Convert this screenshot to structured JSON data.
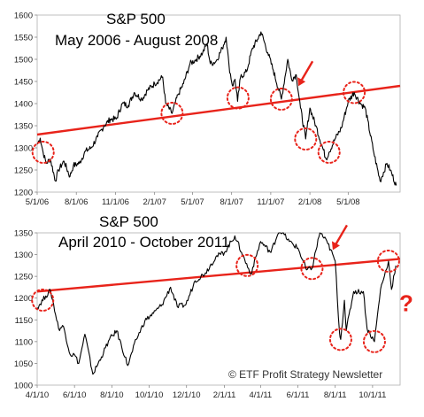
{
  "figure": {
    "watermark": "© ETF Profit Strategy Newsletter",
    "colors": {
      "price_line": "#000000",
      "trendline": "#e8231a",
      "circle": "#e8231a",
      "annotation": "#e8231a",
      "frame": "#b0b0b0",
      "grid": "#ffffff"
    }
  },
  "chart_data": [
    {
      "type": "line",
      "title": "S&P 500",
      "subtitle": "May 2006 - August 2008",
      "xlabel": "",
      "ylabel": "",
      "ylim": [
        1200,
        1600
      ],
      "y_ticks": [
        1200,
        1250,
        1300,
        1350,
        1400,
        1450,
        1500,
        1550,
        1600
      ],
      "x_tick_labels": [
        "5/1/06",
        "8/1/06",
        "11/1/06",
        "2/1/07",
        "5/1/07",
        "8/1/07",
        "11/1/07",
        "2/1/08",
        "5/1/08"
      ],
      "xlim": [
        "2006-05-01",
        "2008-08-31"
      ],
      "series": [
        {
          "values": [
            [
              "2006-05-01",
              1308
            ],
            [
              "2006-05-08",
              1322
            ],
            [
              "2006-05-15",
              1290
            ],
            [
              "2006-05-22",
              1265
            ],
            [
              "2006-06-01",
              1275
            ],
            [
              "2006-06-13",
              1225
            ],
            [
              "2006-06-20",
              1250
            ],
            [
              "2006-07-03",
              1270
            ],
            [
              "2006-07-17",
              1235
            ],
            [
              "2006-07-25",
              1260
            ],
            [
              "2006-08-08",
              1265
            ],
            [
              "2006-08-22",
              1292
            ],
            [
              "2006-09-05",
              1300
            ],
            [
              "2006-09-20",
              1325
            ],
            [
              "2006-10-05",
              1350
            ],
            [
              "2006-10-20",
              1365
            ],
            [
              "2006-11-03",
              1365
            ],
            [
              "2006-11-17",
              1400
            ],
            [
              "2006-12-01",
              1396
            ],
            [
              "2006-12-15",
              1425
            ],
            [
              "2007-01-02",
              1410
            ],
            [
              "2007-01-15",
              1430
            ],
            [
              "2007-02-01",
              1445
            ],
            [
              "2007-02-20",
              1460
            ],
            [
              "2007-02-27",
              1400
            ],
            [
              "2007-03-14",
              1378
            ],
            [
              "2007-03-28",
              1420
            ],
            [
              "2007-04-10",
              1445
            ],
            [
              "2007-04-25",
              1490
            ],
            [
              "2007-05-10",
              1500
            ],
            [
              "2007-05-25",
              1515
            ],
            [
              "2007-06-04",
              1535
            ],
            [
              "2007-06-12",
              1490
            ],
            [
              "2007-06-25",
              1495
            ],
            [
              "2007-07-10",
              1525
            ],
            [
              "2007-07-19",
              1550
            ],
            [
              "2007-07-26",
              1485
            ],
            [
              "2007-08-03",
              1440
            ],
            [
              "2007-08-09",
              1455
            ],
            [
              "2007-08-15",
              1405
            ],
            [
              "2007-08-22",
              1460
            ],
            [
              "2007-09-05",
              1472
            ],
            [
              "2007-09-19",
              1525
            ],
            [
              "2007-10-01",
              1545
            ],
            [
              "2007-10-09",
              1562
            ],
            [
              "2007-10-25",
              1515
            ],
            [
              "2007-11-07",
              1475
            ],
            [
              "2007-11-26",
              1410
            ],
            [
              "2007-12-11",
              1500
            ],
            [
              "2007-12-20",
              1455
            ],
            [
              "2007-12-31",
              1465
            ],
            [
              "2008-01-10",
              1390
            ],
            [
              "2008-01-22",
              1320
            ],
            [
              "2008-02-01",
              1390
            ],
            [
              "2008-02-15",
              1350
            ],
            [
              "2008-03-10",
              1275
            ],
            [
              "2008-03-17",
              1290
            ],
            [
              "2008-03-31",
              1320
            ],
            [
              "2008-04-15",
              1345
            ],
            [
              "2008-05-01",
              1405
            ],
            [
              "2008-05-15",
              1425
            ],
            [
              "2008-05-30",
              1400
            ],
            [
              "2008-06-10",
              1390
            ],
            [
              "2008-06-30",
              1290
            ],
            [
              "2008-07-15",
              1225
            ],
            [
              "2008-07-31",
              1265
            ],
            [
              "2008-08-08",
              1250
            ],
            [
              "2008-08-22",
              1215
            ]
          ]
        }
      ],
      "trendline": [
        [
          "2006-05-01",
          1330
        ],
        [
          "2008-08-31",
          1440
        ]
      ],
      "circles": [
        "2006-05-15",
        "2007-03-14",
        "2007-08-16",
        "2007-11-26",
        "2008-01-22",
        "2008-03-17",
        "2008-05-15"
      ],
      "annotations": [
        {
          "type": "arrow",
          "at": "2008-01-05"
        }
      ]
    },
    {
      "type": "line",
      "title": "S&P 500",
      "subtitle": "April 2010 - October 2011",
      "xlabel": "",
      "ylabel": "",
      "ylim": [
        1000,
        1350
      ],
      "y_ticks": [
        1000,
        1050,
        1100,
        1150,
        1200,
        1250,
        1300,
        1350
      ],
      "x_tick_labels": [
        "4/1/10",
        "6/1/10",
        "8/1/10",
        "10/1/10",
        "12/1/10",
        "2/1/11",
        "4/1/11",
        "6/1/11",
        "8/1/11",
        "10/1/11"
      ],
      "xlim": [
        "2010-04-01",
        "2011-11-15"
      ],
      "series": [
        {
          "values": [
            [
              "2010-04-01",
              1178
            ],
            [
              "2010-04-15",
              1205
            ],
            [
              "2010-04-23",
              1217
            ],
            [
              "2010-05-06",
              1130
            ],
            [
              "2010-05-14",
              1135
            ],
            [
              "2010-05-25",
              1070
            ],
            [
              "2010-06-01",
              1070
            ],
            [
              "2010-06-08",
              1050
            ],
            [
              "2010-06-18",
              1117
            ],
            [
              "2010-07-01",
              1025
            ],
            [
              "2010-07-15",
              1065
            ],
            [
              "2010-07-28",
              1105
            ],
            [
              "2010-08-09",
              1125
            ],
            [
              "2010-08-27",
              1045
            ],
            [
              "2010-09-10",
              1105
            ],
            [
              "2010-09-24",
              1148
            ],
            [
              "2010-10-08",
              1165
            ],
            [
              "2010-10-22",
              1185
            ],
            [
              "2010-11-05",
              1225
            ],
            [
              "2010-11-16",
              1180
            ],
            [
              "2010-11-30",
              1185
            ],
            [
              "2010-12-15",
              1240
            ],
            [
              "2011-01-01",
              1258
            ],
            [
              "2011-01-18",
              1295
            ],
            [
              "2011-02-01",
              1305
            ],
            [
              "2011-02-18",
              1343
            ],
            [
              "2011-03-01",
              1305
            ],
            [
              "2011-03-16",
              1255
            ],
            [
              "2011-04-01",
              1330
            ],
            [
              "2011-04-18",
              1305
            ],
            [
              "2011-05-02",
              1360
            ],
            [
              "2011-05-18",
              1330
            ],
            [
              "2011-06-01",
              1315
            ],
            [
              "2011-06-15",
              1265
            ],
            [
              "2011-06-24",
              1268
            ],
            [
              "2011-07-07",
              1352
            ],
            [
              "2011-07-20",
              1325
            ],
            [
              "2011-08-01",
              1285
            ],
            [
              "2011-08-08",
              1120
            ],
            [
              "2011-08-10",
              1105
            ],
            [
              "2011-08-16",
              1195
            ],
            [
              "2011-08-19",
              1125
            ],
            [
              "2011-08-31",
              1215
            ],
            [
              "2011-09-16",
              1215
            ],
            [
              "2011-09-22",
              1130
            ],
            [
              "2011-10-04",
              1100
            ],
            [
              "2011-10-14",
              1220
            ],
            [
              "2011-10-27",
              1285
            ],
            [
              "2011-11-01",
              1220
            ],
            [
              "2011-11-08",
              1275
            ]
          ]
        }
      ],
      "trendline": [
        [
          "2010-04-01",
          1215
        ],
        [
          "2011-11-15",
          1290
        ]
      ],
      "circles": [
        "2010-04-10",
        "2011-03-10",
        "2011-06-24",
        "2011-08-10",
        "2011-10-04",
        "2011-10-27"
      ],
      "annotations": [
        {
          "type": "arrow",
          "at": "2011-07-28"
        },
        {
          "type": "text",
          "text": "?",
          "at": "2011-11-25",
          "y": 1170
        }
      ]
    }
  ]
}
